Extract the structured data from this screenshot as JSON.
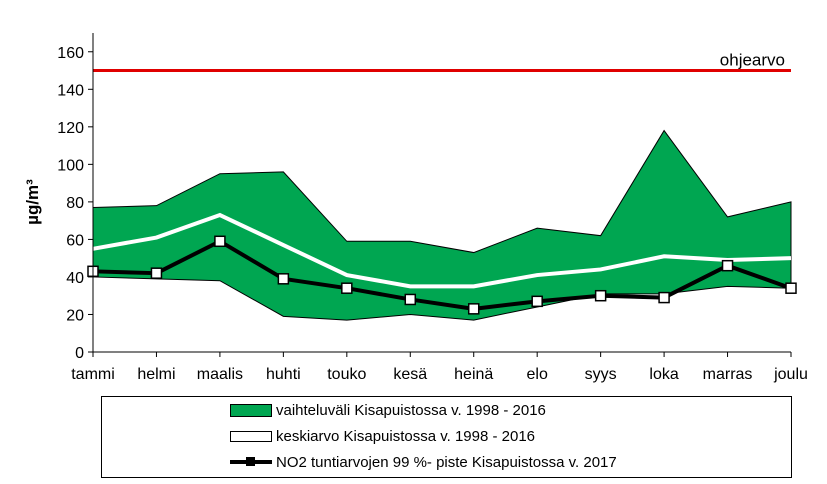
{
  "chart_data": {
    "type": "area",
    "categories": [
      "tammi",
      "helmi",
      "maalis",
      "huhti",
      "touko",
      "kesä",
      "heinä",
      "elo",
      "syys",
      "loka",
      "marras",
      "joulu"
    ],
    "ylabel": "µg/m³",
    "ylim": [
      0,
      170
    ],
    "yticks": [
      0,
      20,
      40,
      60,
      80,
      100,
      120,
      140,
      160
    ],
    "grid": false,
    "reference_line": {
      "label": "ohjearvo",
      "value": 150,
      "color": "#e00000"
    },
    "range_band": {
      "name": "vaihteluväli Kisapuistossa v. 1998 - 2016",
      "upper": [
        77,
        78,
        95,
        96,
        59,
        59,
        53,
        66,
        62,
        118,
        72,
        80
      ],
      "lower": [
        40,
        39,
        38,
        19,
        17,
        20,
        17,
        24,
        31,
        31,
        35,
        34
      ],
      "color": "#00a651"
    },
    "series": [
      {
        "name": "keskiarvo Kisapuistossa v. 1998 - 2016",
        "values": [
          55,
          61,
          73,
          57,
          41,
          35,
          35,
          41,
          44,
          51,
          49,
          50
        ],
        "color": "#ffffff"
      },
      {
        "name": "NO2 tuntiarvojen 99 %- piste Kisapuistossa v. 2017",
        "values": [
          43,
          42,
          59,
          39,
          34,
          28,
          23,
          27,
          30,
          29,
          46,
          34
        ],
        "color": "#000000"
      }
    ],
    "legend_position": "bottom"
  }
}
